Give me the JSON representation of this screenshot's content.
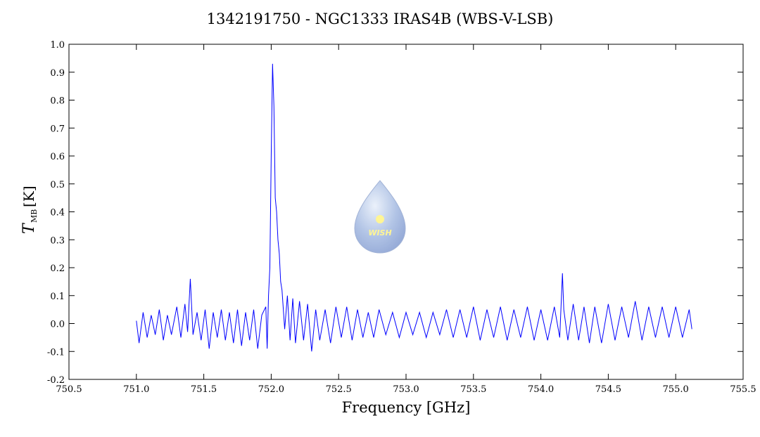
{
  "chart_data": {
    "type": "line",
    "title": "1342191750 - NGC1333 IRAS4B (WBS-V-LSB)",
    "xlabel": "Frequency [GHz]",
    "ylabel": "T",
    "ylabel_sub": "MB",
    "ylabel_unit": "[K]",
    "logo_text": "WISH",
    "xlim": [
      750.5,
      755.5
    ],
    "xticks": [
      750.5,
      {
        "value": 751,
        "label": "751.0"
      },
      751.5,
      {
        "value": 752,
        "label": "752.0"
      },
      752.5,
      {
        "value": 753,
        "label": "753.0"
      },
      753.5,
      {
        "value": 754,
        "label": "754.0"
      },
      754.5,
      {
        "value": 755,
        "label": "755.0"
      },
      755.5
    ],
    "ylim": [
      -0.2,
      1.0
    ],
    "yticks": [
      -0.2,
      -0.1,
      {
        "value": 0,
        "label": "0.0"
      },
      0.1,
      0.2,
      0.3,
      0.4,
      0.5,
      0.6,
      0.7,
      0.8,
      0.9,
      {
        "value": 1,
        "label": "1.0"
      }
    ],
    "series": [
      {
        "color": "#0000ff",
        "x": [
          751.0,
          751.02,
          751.05,
          751.08,
          751.11,
          751.14,
          751.17,
          751.2,
          751.23,
          751.26,
          751.3,
          751.33,
          751.36,
          751.38,
          751.4,
          751.42,
          751.45,
          751.48,
          751.51,
          751.54,
          751.57,
          751.6,
          751.63,
          751.66,
          751.69,
          751.72,
          751.75,
          751.78,
          751.81,
          751.84,
          751.87,
          751.9,
          751.93,
          751.96,
          751.97,
          751.98,
          751.99,
          752.0,
          752.01,
          752.02,
          752.03,
          752.04,
          752.05,
          752.06,
          752.07,
          752.08,
          752.1,
          752.12,
          752.14,
          752.16,
          752.18,
          752.21,
          752.24,
          752.27,
          752.3,
          752.33,
          752.36,
          752.4,
          752.44,
          752.48,
          752.52,
          752.56,
          752.6,
          752.64,
          752.68,
          752.72,
          752.76,
          752.8,
          752.85,
          752.9,
          752.95,
          753.0,
          753.05,
          753.1,
          753.15,
          753.2,
          753.25,
          753.3,
          753.35,
          753.4,
          753.45,
          753.5,
          753.55,
          753.6,
          753.65,
          753.7,
          753.75,
          753.8,
          753.85,
          753.9,
          753.95,
          754.0,
          754.05,
          754.1,
          754.14,
          754.16,
          754.17,
          754.2,
          754.24,
          754.28,
          754.32,
          754.36,
          754.4,
          754.45,
          754.5,
          754.55,
          754.6,
          754.65,
          754.7,
          754.75,
          754.8,
          754.85,
          754.9,
          754.95,
          755.0,
          755.05,
          755.1,
          755.12
        ],
        "values": [
          0.01,
          -0.07,
          0.04,
          -0.05,
          0.03,
          -0.04,
          0.05,
          -0.06,
          0.03,
          -0.04,
          0.06,
          -0.05,
          0.07,
          -0.03,
          0.16,
          -0.04,
          0.04,
          -0.06,
          0.05,
          -0.09,
          0.04,
          -0.05,
          0.05,
          -0.06,
          0.04,
          -0.07,
          0.05,
          -0.08,
          0.04,
          -0.06,
          0.05,
          -0.09,
          0.03,
          0.06,
          -0.09,
          0.1,
          0.2,
          0.6,
          0.93,
          0.78,
          0.45,
          0.4,
          0.3,
          0.25,
          0.15,
          0.12,
          -0.02,
          0.1,
          -0.06,
          0.09,
          -0.07,
          0.08,
          -0.06,
          0.07,
          -0.1,
          0.05,
          -0.06,
          0.05,
          -0.07,
          0.06,
          -0.05,
          0.06,
          -0.06,
          0.05,
          -0.05,
          0.04,
          -0.05,
          0.05,
          -0.04,
          0.04,
          -0.05,
          0.04,
          -0.04,
          0.04,
          -0.05,
          0.04,
          -0.04,
          0.05,
          -0.05,
          0.05,
          -0.05,
          0.06,
          -0.06,
          0.05,
          -0.05,
          0.06,
          -0.06,
          0.05,
          -0.05,
          0.06,
          -0.06,
          0.05,
          -0.06,
          0.06,
          -0.05,
          0.18,
          0.05,
          -0.06,
          0.07,
          -0.06,
          0.06,
          -0.07,
          0.06,
          -0.07,
          0.07,
          -0.06,
          0.06,
          -0.05,
          0.08,
          -0.06,
          0.06,
          -0.05,
          0.06,
          -0.05,
          0.06,
          -0.05,
          0.05,
          -0.02
        ]
      }
    ]
  }
}
